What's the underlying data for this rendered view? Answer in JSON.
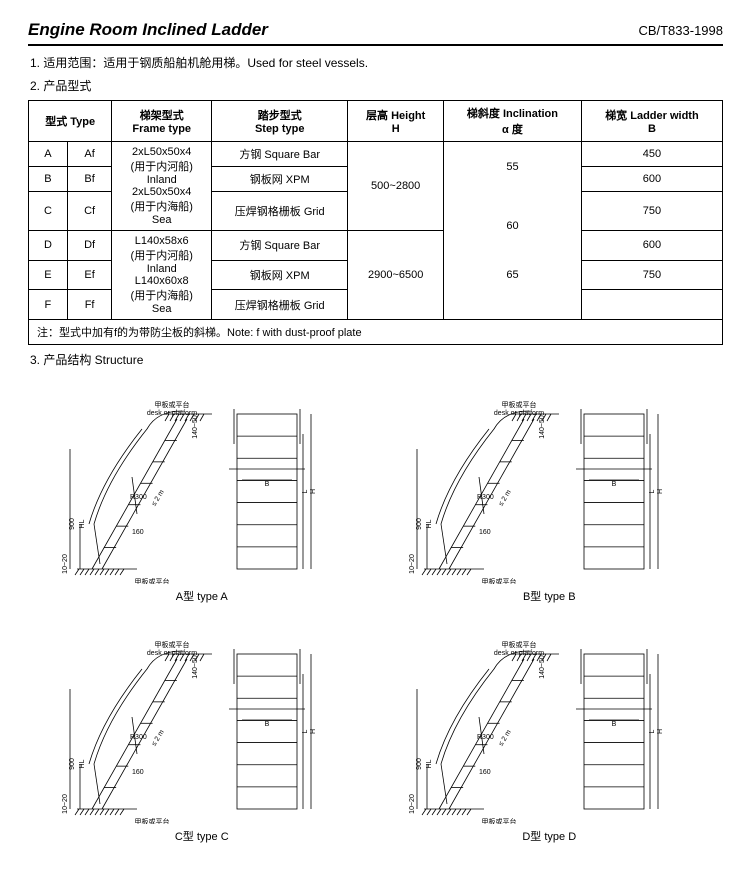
{
  "header": {
    "title": "Engine Room Inclined Ladder",
    "code": "CB/T833-1998"
  },
  "section1": {
    "label": "1. 适用范围：适用于钢质船舶机舱用梯。Used for steel vessels."
  },
  "section2": {
    "label": "2. 产品型式"
  },
  "table": {
    "headers": {
      "type": "型式 Type",
      "frame": "梯架型式\nFrame type",
      "step": "踏步型式\nStep type",
      "height": "层高 Height\nH",
      "incl": "梯斜度 Inclination\nα 度",
      "width": "梯宽 Ladder width\nB"
    },
    "rows": [
      {
        "c1": "A",
        "c2": "Af",
        "frame": "2xL50x50x4\n(用于内河船)\nInland\n2xL50x50x4\n(用于内海船)\nSea",
        "step": "方钢 Square Bar",
        "height": "500~2800",
        "incl": "55",
        "width": "450"
      },
      {
        "c1": "B",
        "c2": "Bf",
        "step": "钢板网 XPM",
        "width": "600"
      },
      {
        "c1": "C",
        "c2": "Cf",
        "step": "压焊钢格栅板 Grid",
        "incl": "60",
        "width": "750"
      },
      {
        "c1": "D",
        "c2": "Df",
        "frame": "L140x58x6\n(用于内河船)\nInland\nL140x60x8\n(用于内海船)\nSea",
        "step": "方钢 Square Bar",
        "height": "2900~6500",
        "width": "600"
      },
      {
        "c1": "E",
        "c2": "Ef",
        "step": "钢板网 XPM",
        "incl": "65",
        "width": "750"
      },
      {
        "c1": "F",
        "c2": "Ff",
        "step": "压焊钢格栅板 Grid"
      }
    ],
    "note": "注：型式中加有f的为带防尘板的斜梯。Note: f with dust-proof plate"
  },
  "section3": {
    "label": "3. 产品结构 Structure"
  },
  "diagramStyle": {
    "stroke": "#000000",
    "strokeWidth": 0.8,
    "fill": "none",
    "textColor": "#000000",
    "captionFontSize": 11,
    "labelFontSize": 7
  },
  "diagrams": [
    {
      "caption": "A型  type A",
      "topLabel": "甲板或平台\ndesk or platform",
      "botLabel": "甲板或平台\ndesk or platform"
    },
    {
      "caption": "B型  type B",
      "topLabel": "甲板或平台\ndesk or platform",
      "botLabel": "甲板或平台\ndesk or platform"
    },
    {
      "caption": "C型  type C",
      "topLabel": "甲板或平台\ndesk or platform",
      "botLabel": "甲板或平台\ndesk or platform"
    },
    {
      "caption": "D型  type D",
      "topLabel": "甲板或平台\ndesk or platform",
      "botLabel": "甲板或平台\ndesk or platform"
    }
  ],
  "dimLabels": {
    "r": "R300",
    "step": "160",
    "h": "900",
    "b": "B",
    "H": "H",
    "L": "L",
    "ang": "≤ 2 m",
    "v1": "10~20",
    "v2": "140~50",
    "hl": "HL"
  }
}
